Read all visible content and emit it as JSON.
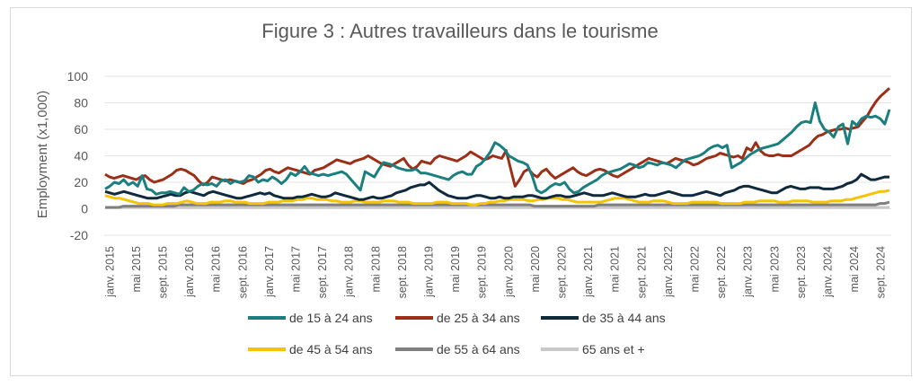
{
  "chart_data": {
    "type": "line",
    "title": "Figure 3 : Autres travailleurs dans le tourisme",
    "ylabel": "Employment (x1,000)",
    "ylim": [
      -20,
      100
    ],
    "yticks": [
      -20,
      0,
      20,
      40,
      60,
      80,
      100
    ],
    "grid": true,
    "legend_position": "bottom",
    "x_tick_labels": [
      "janv. 2015",
      "mai 2015",
      "sept. 2015",
      "janv. 2016",
      "mai 2016",
      "sept. 2016",
      "janv. 2017",
      "mai 2017",
      "sept. 2017",
      "janv. 2018",
      "mai 2018",
      "sept. 2018",
      "janv. 2019",
      "mai 2019",
      "sept. 2019",
      "janv. 2020",
      "mai 2020",
      "sept. 2020",
      "janv. 2021",
      "mai 2021",
      "sept. 2021",
      "janv. 2022",
      "mai 2022",
      "sept. 2022",
      "janv. 2023",
      "mai 2023",
      "sept. 2023",
      "janv. 2024",
      "mai 2024",
      "sept. 2024"
    ],
    "series": [
      {
        "name": "de 15 à 24 ans",
        "color": "#1b7f7f",
        "values": [
          15,
          17,
          20,
          19,
          22,
          18,
          20,
          17,
          25,
          15,
          14,
          11,
          12,
          12,
          13,
          12,
          11,
          16,
          13,
          14,
          17,
          19,
          18,
          19,
          17,
          21,
          22,
          19,
          21,
          20,
          21,
          25,
          24,
          20,
          22,
          21,
          24,
          22,
          19,
          22,
          27,
          25,
          28,
          32,
          27,
          26,
          25,
          26,
          25,
          26,
          27,
          28,
          26,
          22,
          18,
          14,
          28,
          26,
          24,
          30,
          35,
          34,
          33,
          31,
          30,
          29,
          29,
          30,
          27,
          27,
          26,
          25,
          24,
          23,
          22,
          25,
          27,
          28,
          26,
          26,
          32,
          34,
          38,
          43,
          50,
          48,
          45,
          40,
          38,
          36,
          35,
          33,
          25,
          14,
          12,
          14,
          17,
          19,
          18,
          20,
          15,
          12,
          13,
          16,
          18,
          20,
          22,
          25,
          27,
          28,
          29,
          30,
          32,
          34,
          33,
          31,
          32,
          35,
          34,
          33,
          35,
          34,
          33,
          31,
          34,
          37,
          38,
          39,
          40,
          42,
          45,
          47,
          48,
          46,
          48,
          31,
          33,
          35,
          38,
          41,
          43,
          45,
          46,
          47,
          48,
          49,
          52,
          55,
          58,
          62,
          65,
          66,
          65,
          80,
          66,
          60,
          58,
          54,
          62,
          64,
          49,
          66,
          63,
          68,
          70,
          69,
          70,
          68,
          64,
          75
        ]
      },
      {
        "name": "de 25 à 34 ans",
        "color": "#9c2f17",
        "values": [
          26,
          24,
          23,
          24,
          25,
          24,
          23,
          22,
          24,
          25,
          22,
          20,
          21,
          22,
          24,
          26,
          29,
          30,
          29,
          27,
          25,
          21,
          18,
          20,
          24,
          23,
          22,
          21,
          22,
          21,
          20,
          19,
          21,
          22,
          24,
          26,
          29,
          30,
          28,
          27,
          29,
          31,
          30,
          29,
          28,
          27,
          26,
          29,
          30,
          31,
          33,
          35,
          37,
          36,
          35,
          34,
          36,
          37,
          38,
          40,
          38,
          36,
          34,
          33,
          32,
          34,
          36,
          38,
          33,
          30,
          32,
          36,
          35,
          34,
          38,
          40,
          39,
          38,
          37,
          36,
          38,
          40,
          43,
          41,
          39,
          37,
          38,
          40,
          39,
          38,
          44,
          30,
          17,
          22,
          28,
          30,
          26,
          24,
          28,
          30,
          26,
          23,
          25,
          27,
          29,
          31,
          28,
          26,
          25,
          27,
          29,
          30,
          29,
          27,
          25,
          24,
          26,
          28,
          30,
          32,
          34,
          36,
          38,
          37,
          36,
          35,
          34,
          36,
          38,
          37,
          36,
          35,
          33,
          34,
          36,
          38,
          39,
          40,
          42,
          41,
          40,
          39,
          40,
          38,
          46,
          44,
          50,
          44,
          41,
          40,
          40,
          41,
          40,
          40,
          40,
          42,
          44,
          46,
          48,
          52,
          55,
          56,
          58,
          59,
          60,
          60,
          61,
          60,
          61,
          62,
          66,
          70,
          76,
          81,
          85,
          88,
          91
        ]
      },
      {
        "name": "de 35 à 44 ans",
        "color": "#0f2a3d",
        "values": [
          13,
          12,
          11,
          12,
          13,
          12,
          11,
          10,
          9,
          8,
          8,
          8,
          9,
          10,
          11,
          10,
          10,
          12,
          13,
          12,
          11,
          10,
          12,
          13,
          12,
          11,
          10,
          9,
          8,
          8,
          9,
          10,
          11,
          12,
          11,
          12,
          10,
          9,
          8,
          8,
          8,
          9,
          9,
          10,
          11,
          10,
          9,
          9,
          10,
          12,
          11,
          10,
          9,
          8,
          7,
          7,
          8,
          9,
          8,
          8,
          9,
          10,
          12,
          13,
          14,
          16,
          17,
          18,
          18,
          20,
          17,
          14,
          12,
          10,
          9,
          8,
          8,
          8,
          9,
          10,
          10,
          9,
          8,
          8,
          9,
          8,
          8,
          9,
          9,
          9,
          10,
          10,
          9,
          8,
          8,
          9,
          10,
          10,
          9,
          9,
          10,
          11,
          12,
          11,
          10,
          10,
          10,
          11,
          12,
          11,
          10,
          9,
          9,
          9,
          10,
          11,
          10,
          10,
          11,
          12,
          13,
          12,
          11,
          10,
          10,
          10,
          11,
          12,
          13,
          12,
          11,
          10,
          12,
          13,
          14,
          16,
          17,
          17,
          16,
          15,
          14,
          13,
          12,
          12,
          14,
          16,
          17,
          16,
          15,
          15,
          16,
          16,
          16,
          15,
          15,
          15,
          16,
          17,
          19,
          20,
          22,
          26,
          24,
          22,
          22,
          23,
          24,
          24
        ]
      },
      {
        "name": "de 45 à 54 ans",
        "color": "#f5c400",
        "values": [
          10,
          9,
          8,
          8,
          7,
          6,
          5,
          4,
          4,
          4,
          3,
          3,
          3,
          4,
          4,
          4,
          5,
          6,
          5,
          4,
          4,
          4,
          5,
          5,
          5,
          6,
          6,
          5,
          5,
          5,
          4,
          4,
          4,
          4,
          5,
          5,
          5,
          6,
          6,
          6,
          7,
          7,
          8,
          8,
          7,
          7,
          7,
          6,
          6,
          5,
          5,
          5,
          6,
          6,
          5,
          5,
          5,
          5,
          6,
          6,
          6,
          5,
          5,
          5,
          4,
          4,
          4,
          4,
          4,
          5,
          5,
          5,
          4,
          4,
          4,
          4,
          3,
          3,
          4,
          4,
          5,
          5,
          6,
          6,
          7,
          7,
          7,
          7,
          6,
          6,
          7,
          7,
          8,
          8,
          8,
          7,
          7,
          6,
          5,
          5,
          5,
          5,
          5,
          5,
          6,
          7,
          8,
          8,
          8,
          7,
          6,
          5,
          5,
          5,
          6,
          6,
          6,
          5,
          4,
          4,
          4,
          4,
          5,
          5,
          5,
          5,
          5,
          5,
          4,
          4,
          4,
          4,
          4,
          5,
          5,
          5,
          6,
          6,
          6,
          6,
          5,
          5,
          5,
          6,
          6,
          6,
          6,
          5,
          5,
          5,
          5,
          6,
          6,
          6,
          7,
          7,
          8,
          9,
          10,
          11,
          12,
          13,
          13,
          14
        ]
      },
      {
        "name": "de 55 à 64 ans",
        "color": "#7f7f7f",
        "values": [
          1,
          1,
          1,
          1,
          2,
          2,
          2,
          2,
          2,
          2,
          2,
          2,
          2,
          2,
          2,
          2,
          3,
          3,
          3,
          3,
          3,
          3,
          3,
          3,
          3,
          3,
          3,
          3,
          3,
          3,
          3,
          3,
          3,
          3,
          3,
          3,
          3,
          3,
          3,
          3,
          3,
          3,
          3,
          3,
          3,
          3,
          3,
          3,
          3,
          3,
          3,
          3,
          3,
          3,
          3,
          3,
          3,
          3,
          3,
          3,
          3,
          3,
          3,
          3,
          3,
          3,
          3,
          3,
          3,
          3,
          3,
          3,
          3,
          3,
          3,
          3,
          3,
          3,
          3,
          3,
          3,
          3,
          3,
          3,
          3,
          3,
          3,
          3,
          3,
          3,
          3,
          3,
          3,
          2,
          2,
          2,
          2,
          2,
          2,
          2,
          2,
          2,
          2,
          2,
          2,
          2,
          2,
          3,
          3,
          3,
          3,
          3,
          3,
          3,
          3,
          3,
          3,
          3,
          3,
          3,
          3,
          3,
          3,
          3,
          3,
          3,
          3,
          3,
          3,
          3,
          3,
          3,
          3,
          3,
          3,
          3,
          3,
          3,
          3,
          3,
          3,
          3,
          3,
          3,
          3,
          3,
          3,
          3,
          3,
          3,
          3,
          3,
          3,
          3,
          3,
          3,
          3,
          3,
          3,
          3,
          3,
          3,
          3,
          3,
          3,
          3,
          3,
          3,
          4,
          4,
          5
        ]
      },
      {
        "name": "65 ans et +",
        "color": "#c8c8c8",
        "values": [
          1,
          1,
          1,
          1,
          1,
          1,
          1,
          1,
          1,
          1,
          1,
          1,
          1,
          1,
          1,
          1,
          1,
          1,
          1,
          1,
          1,
          1,
          1,
          1,
          1,
          1,
          1,
          1,
          1,
          1,
          1,
          1,
          1,
          1,
          1,
          1,
          1,
          1,
          1,
          1,
          1,
          1,
          1,
          1,
          1,
          1,
          1,
          1,
          1,
          1,
          1,
          1,
          1,
          1,
          1,
          1,
          1,
          1,
          1,
          1,
          1,
          1,
          1,
          1,
          1,
          1,
          1,
          1,
          1,
          1,
          1,
          1,
          1,
          1,
          1,
          1,
          1,
          1,
          1,
          1,
          1,
          1,
          1,
          1,
          1,
          1,
          1,
          1,
          1,
          1,
          1,
          1,
          1,
          1,
          1,
          1,
          1,
          1,
          1,
          1,
          1,
          1,
          1,
          1,
          1,
          1,
          1,
          1,
          1,
          1,
          1,
          1,
          1,
          1,
          1,
          1,
          1,
          1,
          1,
          1,
          1,
          1,
          1,
          1,
          1,
          1,
          1,
          1,
          1,
          1,
          1,
          1,
          1,
          1,
          1,
          1,
          1,
          1,
          1,
          1,
          1,
          1,
          1,
          1,
          1,
          1,
          1,
          1,
          1,
          1,
          1,
          1,
          1,
          1,
          1,
          1,
          1,
          1,
          1,
          1,
          1,
          1,
          1,
          1,
          1,
          1,
          1,
          1,
          1,
          1,
          1
        ]
      }
    ]
  }
}
